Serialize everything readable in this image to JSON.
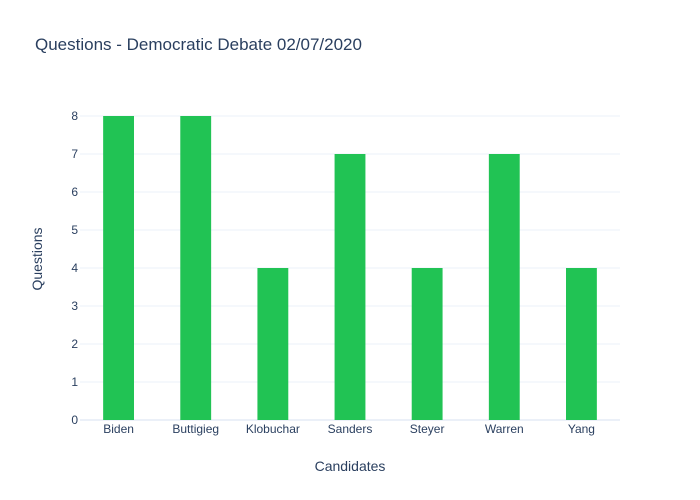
{
  "chart_data": {
    "type": "bar",
    "title": "Questions - Democratic Debate 02/07/2020",
    "xlabel": "Candidates",
    "ylabel": "Questions",
    "categories": [
      "Biden",
      "Buttigieg",
      "Klobuchar",
      "Sanders",
      "Steyer",
      "Warren",
      "Yang"
    ],
    "values": [
      8,
      8,
      4,
      7,
      4,
      7,
      4
    ],
    "ylim": [
      0,
      8
    ],
    "yticks": [
      0,
      1,
      2,
      3,
      4,
      5,
      6,
      7,
      8
    ],
    "grid": true,
    "bar_color": "#21c354"
  }
}
